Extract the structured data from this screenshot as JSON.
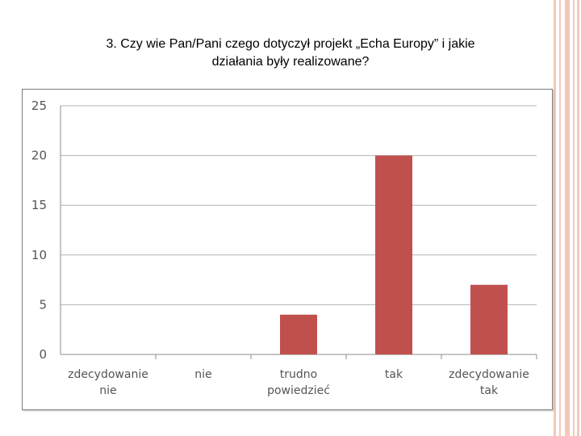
{
  "slide": {
    "title_line1": "3. Czy wie Pan/Pani czego dotyczył projekt „Echa Europy” i jakie",
    "title_line2": "działania były realizowane?"
  },
  "colors": {
    "bar": "#c0504d",
    "grid": "#b3b3b3",
    "decor": "#f3c9b6"
  },
  "chart_data": {
    "type": "bar",
    "categories": [
      [
        "zdecydowanie",
        "nie"
      ],
      [
        "nie"
      ],
      [
        "trudno",
        "powiedzieć"
      ],
      [
        "tak"
      ],
      [
        "zdecydowanie",
        "tak"
      ]
    ],
    "values": [
      0,
      0,
      4,
      20,
      7
    ],
    "ylim": [
      0,
      25
    ],
    "yticks": [
      0,
      5,
      10,
      15,
      20,
      25
    ],
    "grid": true,
    "legend": "none"
  }
}
